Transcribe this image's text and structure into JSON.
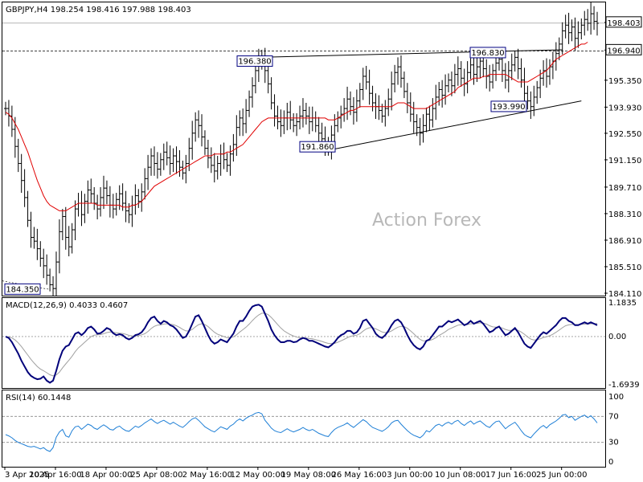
{
  "chart_data": [
    {
      "type": "candlestick",
      "symbol_header": "GBPJPY,H4  198.254 198.416 197.988 198.403",
      "watermark": "Action Forex",
      "ylim": [
        184.11,
        198.99
      ],
      "y_ticks": [
        "198.990",
        "197.570",
        "196.150",
        "194.730",
        "193.310",
        "191.890",
        "190.470",
        "189.050",
        "187.630",
        "186.210",
        "184.790"
      ],
      "y_tick_labels": [
        "198.403",
        "196.940",
        "195.350",
        "193.930",
        "192.550",
        "191.150",
        "189.710",
        "188.310",
        "186.910",
        "185.510",
        "184.110"
      ],
      "current_price": 198.403,
      "horizontal_level": 196.94,
      "annotations": [
        {
          "label": "184.350",
          "value": 184.35
        },
        {
          "label": "196.380",
          "value": 196.38
        },
        {
          "label": "191.860",
          "value": 191.86
        },
        {
          "label": "196.830",
          "value": 196.83
        },
        {
          "label": "193.990",
          "value": 193.99
        }
      ],
      "x_tick_labels": [
        "3 Apr 2025",
        "10 Apr 16:00",
        "18 Apr 00:00",
        "25 Apr 08:00",
        "2 May 16:00",
        "12 May 00:00",
        "19 May 08:00",
        "26 May 16:00",
        "3 Jun 00:00",
        "10 Jun 08:00",
        "17 Jun 16:00",
        "25 Jun 00:00"
      ],
      "close_series": [
        193.9,
        193.5,
        192.8,
        191.9,
        191.0,
        190.1,
        189.2,
        188.0,
        187.1,
        186.9,
        186.5,
        186.0,
        185.6,
        185.1,
        184.6,
        184.4,
        185.8,
        187.4,
        188.2,
        187.1,
        186.6,
        187.5,
        188.6,
        188.9,
        188.3,
        189.0,
        189.6,
        189.4,
        188.9,
        188.6,
        189.2,
        189.7,
        189.3,
        188.8,
        188.6,
        189.1,
        189.4,
        188.9,
        188.5,
        188.3,
        188.8,
        189.3,
        189.0,
        189.5,
        190.2,
        190.8,
        191.4,
        191.0,
        190.7,
        191.2,
        191.6,
        191.3,
        191.0,
        191.4,
        191.1,
        190.8,
        190.5,
        191.0,
        191.8,
        192.6,
        193.3,
        193.0,
        192.4,
        191.8,
        191.3,
        190.9,
        190.6,
        191.0,
        191.5,
        191.2,
        190.9,
        191.5,
        192.0,
        192.9,
        193.4,
        193.1,
        193.8,
        194.5,
        195.1,
        195.9,
        196.4,
        196.6,
        195.9,
        195.2,
        194.2,
        193.5,
        193.2,
        193.0,
        193.4,
        193.7,
        193.3,
        193.0,
        193.2,
        193.5,
        193.8,
        193.5,
        193.2,
        193.4,
        193.0,
        192.6,
        192.3,
        192.0,
        191.86,
        192.5,
        193.0,
        193.4,
        193.6,
        193.9,
        194.4,
        194.0,
        193.7,
        194.3,
        194.9,
        195.6,
        195.3,
        194.7,
        194.2,
        194.0,
        193.8,
        193.5,
        193.9,
        194.4,
        195.2,
        195.8,
        196.1,
        195.5,
        194.8,
        194.2,
        193.6,
        193.2,
        192.9,
        192.6,
        193.0,
        193.6,
        193.3,
        193.9,
        194.5,
        194.9,
        194.6,
        195.1,
        195.4,
        195.1,
        195.7,
        196.0,
        195.5,
        195.2,
        195.8,
        196.2,
        195.7,
        196.1,
        196.4,
        196.0,
        195.6,
        195.3,
        195.9,
        196.3,
        196.5,
        195.9,
        195.4,
        195.9,
        196.2,
        196.6,
        196.0,
        195.4,
        194.7,
        194.3,
        194.0,
        194.5,
        195.0,
        195.5,
        195.9,
        195.6,
        196.1,
        196.4,
        196.8,
        197.3,
        198.0,
        198.3,
        197.9,
        198.2,
        197.6,
        197.9,
        198.3,
        198.6,
        198.4,
        198.9,
        198.5,
        198.4
      ],
      "ma_series": [
        193.7,
        193.6,
        193.4,
        193.1,
        192.8,
        192.4,
        192.0,
        191.6,
        191.1,
        190.6,
        190.1,
        189.7,
        189.3,
        189.0,
        188.8,
        188.7,
        188.6,
        188.5,
        188.5,
        188.5,
        188.6,
        188.7,
        188.8,
        188.9,
        188.9,
        188.9,
        188.9,
        188.9,
        188.9,
        188.8,
        188.8,
        188.8,
        188.8,
        188.8,
        188.8,
        188.8,
        188.8,
        188.7,
        188.7,
        188.7,
        188.8,
        188.8,
        188.9,
        189.0,
        189.2,
        189.4,
        189.6,
        189.8,
        189.9,
        190.0,
        190.1,
        190.2,
        190.3,
        190.4,
        190.5,
        190.6,
        190.7,
        190.8,
        190.9,
        191.0,
        191.1,
        191.2,
        191.3,
        191.4,
        191.4,
        191.4,
        191.5,
        191.5,
        191.5,
        191.5,
        191.6,
        191.6,
        191.7,
        191.8,
        191.9,
        192.0,
        192.2,
        192.4,
        192.6,
        192.8,
        193.0,
        193.2,
        193.3,
        193.4,
        193.4,
        193.4,
        193.4,
        193.4,
        193.4,
        193.4,
        193.4,
        193.4,
        193.4,
        193.4,
        193.4,
        193.4,
        193.4,
        193.4,
        193.4,
        193.4,
        193.4,
        193.4,
        193.3,
        193.3,
        193.3,
        193.4,
        193.5,
        193.6,
        193.7,
        193.8,
        193.8,
        193.9,
        194.0,
        194.0,
        194.0,
        194.0,
        194.0,
        194.0,
        194.0,
        194.0,
        194.0,
        194.0,
        194.0,
        194.1,
        194.2,
        194.2,
        194.2,
        194.1,
        194.0,
        193.9,
        193.9,
        193.9,
        193.9,
        193.9,
        194.0,
        194.1,
        194.2,
        194.3,
        194.4,
        194.5,
        194.6,
        194.7,
        194.8,
        195.0,
        195.1,
        195.2,
        195.3,
        195.4,
        195.5,
        195.5,
        195.5,
        195.6,
        195.6,
        195.7,
        195.7,
        195.7,
        195.7,
        195.7,
        195.7,
        195.6,
        195.5,
        195.4,
        195.3,
        195.3,
        195.3,
        195.3,
        195.4,
        195.5,
        195.6,
        195.7,
        195.8,
        195.9,
        196.1,
        196.3,
        196.5,
        196.6,
        196.7,
        196.8,
        196.9,
        197.0,
        197.1,
        197.2,
        197.3,
        197.3,
        197.4
      ]
    },
    {
      "type": "line",
      "title": "MACD(12,26,9) 0.4033 0.4607",
      "ylim": [
        -1.6939,
        1.1835
      ],
      "y_ticks": [
        1.1835,
        0.0,
        -1.6939
      ],
      "y_tick_labels": [
        "1.1835",
        "0.00",
        "-1.6939"
      ],
      "series": [
        {
          "values": [
            0.0,
            -0.05,
            -0.2,
            -0.4,
            -0.6,
            -0.85,
            -1.05,
            -1.25,
            -1.38,
            -1.45,
            -1.5,
            -1.48,
            -1.4,
            -1.55,
            -1.62,
            -1.55,
            -1.2,
            -0.8,
            -0.5,
            -0.35,
            -0.3,
            -0.1,
            0.1,
            0.15,
            0.05,
            0.15,
            0.3,
            0.35,
            0.25,
            0.1,
            0.12,
            0.2,
            0.3,
            0.25,
            0.12,
            0.05,
            0.08,
            0.05,
            -0.05,
            -0.1,
            -0.05,
            0.05,
            0.08,
            0.15,
            0.3,
            0.5,
            0.65,
            0.7,
            0.55,
            0.45,
            0.55,
            0.5,
            0.4,
            0.35,
            0.25,
            0.1,
            -0.05,
            0.0,
            0.2,
            0.45,
            0.7,
            0.75,
            0.55,
            0.3,
            0.05,
            -0.15,
            -0.25,
            -0.2,
            -0.1,
            -0.15,
            -0.2,
            -0.05,
            0.1,
            0.35,
            0.55,
            0.55,
            0.7,
            0.9,
            1.05,
            1.1,
            1.12,
            1.05,
            0.8,
            0.55,
            0.25,
            0.05,
            -0.1,
            -0.2,
            -0.2,
            -0.15,
            -0.15,
            -0.2,
            -0.18,
            -0.1,
            -0.05,
            -0.08,
            -0.15,
            -0.15,
            -0.2,
            -0.25,
            -0.3,
            -0.35,
            -0.38,
            -0.3,
            -0.2,
            -0.05,
            0.05,
            0.1,
            0.2,
            0.2,
            0.1,
            0.15,
            0.3,
            0.55,
            0.6,
            0.45,
            0.3,
            0.1,
            0.0,
            -0.05,
            0.05,
            0.2,
            0.4,
            0.55,
            0.6,
            0.5,
            0.3,
            0.05,
            -0.15,
            -0.3,
            -0.4,
            -0.45,
            -0.35,
            -0.15,
            -0.1,
            0.05,
            0.2,
            0.35,
            0.35,
            0.45,
            0.55,
            0.5,
            0.55,
            0.6,
            0.5,
            0.4,
            0.45,
            0.55,
            0.45,
            0.5,
            0.55,
            0.45,
            0.3,
            0.15,
            0.2,
            0.3,
            0.35,
            0.2,
            0.05,
            0.1,
            0.2,
            0.3,
            0.15,
            -0.05,
            -0.25,
            -0.35,
            -0.4,
            -0.25,
            -0.1,
            0.05,
            0.15,
            0.1,
            0.2,
            0.3,
            0.4,
            0.55,
            0.65,
            0.65,
            0.55,
            0.5,
            0.4,
            0.4,
            0.45,
            0.5,
            0.45,
            0.5,
            0.45,
            0.4
          ]
        },
        {
          "values": [
            0.0,
            -0.01,
            -0.05,
            -0.12,
            -0.22,
            -0.35,
            -0.5,
            -0.65,
            -0.8,
            -0.93,
            -1.05,
            -1.14,
            -1.2,
            -1.27,
            -1.34,
            -1.38,
            -1.35,
            -1.25,
            -1.1,
            -0.96,
            -0.83,
            -0.69,
            -0.53,
            -0.4,
            -0.3,
            -0.2,
            -0.1,
            0.0,
            0.05,
            0.06,
            0.07,
            0.1,
            0.14,
            0.16,
            0.15,
            0.13,
            0.12,
            0.11,
            0.08,
            0.04,
            0.02,
            0.02,
            0.03,
            0.06,
            0.1,
            0.18,
            0.28,
            0.36,
            0.4,
            0.41,
            0.44,
            0.45,
            0.44,
            0.42,
            0.38,
            0.32,
            0.25,
            0.2,
            0.2,
            0.25,
            0.34,
            0.42,
            0.45,
            0.42,
            0.35,
            0.25,
            0.15,
            0.08,
            0.04,
            0.0,
            -0.04,
            -0.04,
            -0.01,
            0.06,
            0.16,
            0.24,
            0.33,
            0.44,
            0.56,
            0.67,
            0.76,
            0.82,
            0.82,
            0.77,
            0.67,
            0.55,
            0.42,
            0.3,
            0.2,
            0.13,
            0.07,
            0.02,
            -0.02,
            -0.04,
            -0.04,
            -0.05,
            -0.07,
            -0.08,
            -0.11,
            -0.14,
            -0.17,
            -0.21,
            -0.24,
            -0.25,
            -0.24,
            -0.2,
            -0.15,
            -0.1,
            -0.04,
            0.01,
            0.03,
            0.05,
            0.1,
            0.19,
            0.27,
            0.31,
            0.31,
            0.27,
            0.22,
            0.16,
            0.14,
            0.15,
            0.2,
            0.27,
            0.33,
            0.36,
            0.35,
            0.29,
            0.2,
            0.1,
            -0.01,
            -0.1,
            -0.15,
            -0.15,
            -0.14,
            -0.1,
            -0.04,
            0.04,
            0.1,
            0.17,
            0.25,
            0.3,
            0.35,
            0.4,
            0.42,
            0.42,
            0.42,
            0.45,
            0.45,
            0.46,
            0.48,
            0.47,
            0.44,
            0.38,
            0.34,
            0.33,
            0.33,
            0.3,
            0.25,
            0.22,
            0.22,
            0.24,
            0.22,
            0.16,
            0.08,
            -0.01,
            -0.09,
            -0.12,
            -0.11,
            -0.08,
            -0.03,
            -0.01,
            0.03,
            0.08,
            0.15,
            0.23,
            0.31,
            0.38,
            0.41,
            0.43,
            0.42,
            0.42,
            0.43,
            0.44,
            0.44,
            0.45,
            0.45,
            0.46
          ]
        }
      ]
    },
    {
      "type": "line",
      "title": "RSI(14) 60.1448",
      "ylim": [
        0,
        100
      ],
      "y_ticks": [
        100,
        70,
        30,
        0
      ],
      "y_tick_labels": [
        "100",
        "70",
        "30",
        "0"
      ],
      "levels": [
        70,
        30
      ],
      "series": [
        {
          "values": [
            42,
            40,
            37,
            33,
            30,
            28,
            26,
            24,
            23,
            24,
            22,
            20,
            22,
            18,
            16,
            22,
            38,
            46,
            50,
            40,
            38,
            48,
            54,
            55,
            50,
            54,
            58,
            56,
            52,
            50,
            54,
            57,
            54,
            50,
            49,
            53,
            55,
            51,
            48,
            47,
            51,
            55,
            53,
            56,
            60,
            63,
            66,
            62,
            59,
            62,
            64,
            61,
            58,
            61,
            58,
            55,
            53,
            57,
            62,
            66,
            68,
            64,
            59,
            54,
            51,
            48,
            46,
            50,
            54,
            52,
            50,
            55,
            58,
            63,
            66,
            63,
            67,
            70,
            72,
            75,
            76,
            74,
            64,
            58,
            52,
            48,
            46,
            45,
            48,
            51,
            48,
            46,
            48,
            50,
            53,
            50,
            48,
            50,
            47,
            44,
            42,
            40,
            39,
            45,
            50,
            53,
            55,
            57,
            60,
            56,
            53,
            57,
            61,
            65,
            62,
            57,
            53,
            51,
            49,
            47,
            50,
            54,
            60,
            63,
            64,
            58,
            53,
            48,
            44,
            41,
            39,
            37,
            41,
            48,
            46,
            51,
            56,
            58,
            55,
            59,
            61,
            58,
            62,
            64,
            59,
            56,
            60,
            63,
            58,
            61,
            63,
            59,
            55,
            53,
            58,
            62,
            63,
            57,
            51,
            55,
            58,
            61,
            55,
            48,
            42,
            39,
            37,
            43,
            48,
            53,
            56,
            52,
            57,
            60,
            63,
            67,
            72,
            73,
            68,
            70,
            64,
            67,
            70,
            72,
            68,
            71,
            66,
            60
          ]
        }
      ]
    }
  ]
}
